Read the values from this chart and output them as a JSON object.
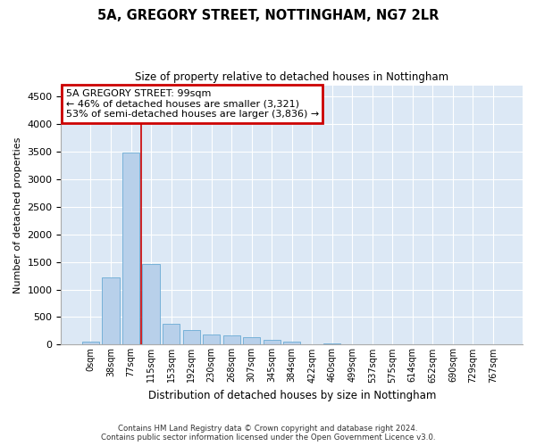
{
  "title1": "5A, GREGORY STREET, NOTTINGHAM, NG7 2LR",
  "title2": "Size of property relative to detached houses in Nottingham",
  "xlabel": "Distribution of detached houses by size in Nottingham",
  "ylabel": "Number of detached properties",
  "footer1": "Contains HM Land Registry data © Crown copyright and database right 2024.",
  "footer2": "Contains public sector information licensed under the Open Government Licence v3.0.",
  "bin_labels": [
    "0sqm",
    "38sqm",
    "77sqm",
    "115sqm",
    "153sqm",
    "192sqm",
    "230sqm",
    "268sqm",
    "307sqm",
    "345sqm",
    "384sqm",
    "422sqm",
    "460sqm",
    "499sqm",
    "537sqm",
    "575sqm",
    "614sqm",
    "652sqm",
    "690sqm",
    "729sqm",
    "767sqm"
  ],
  "bar_values": [
    50,
    1220,
    3480,
    1460,
    380,
    270,
    180,
    160,
    130,
    80,
    60,
    0,
    30,
    0,
    0,
    0,
    0,
    0,
    0,
    0,
    0
  ],
  "bar_color": "#b8d0ea",
  "bar_edge_color": "#6aaad4",
  "vline_x": 2.5,
  "vline_color": "#cc0000",
  "annotation_text": "5A GREGORY STREET: 99sqm\n← 46% of detached houses are smaller (3,321)\n53% of semi-detached houses are larger (3,836) →",
  "annotation_box_color": "#cc0000",
  "ylim": [
    0,
    4700
  ],
  "yticks": [
    0,
    500,
    1000,
    1500,
    2000,
    2500,
    3000,
    3500,
    4000,
    4500
  ],
  "fig_bg": "#ffffff",
  "plot_bg": "#dce8f5",
  "grid_color": "#ffffff",
  "figsize": [
    6.0,
    5.0
  ],
  "dpi": 100
}
